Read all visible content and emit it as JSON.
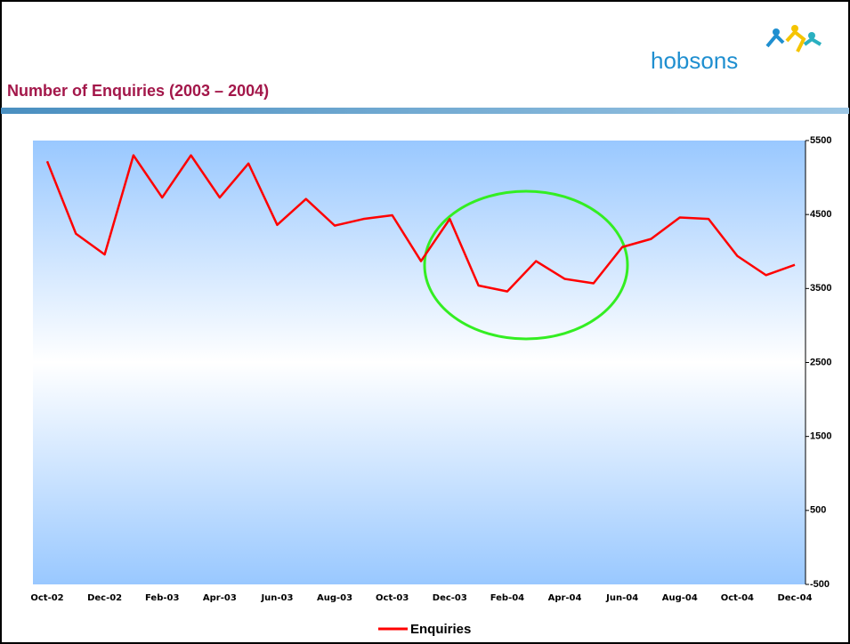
{
  "logo": "hobsons",
  "chart_data": {
    "type": "line",
    "title": "Number of Enquiries (2003 – 2004)",
    "categories": [
      "Oct-02",
      null,
      "Dec-02",
      null,
      "Feb-03",
      null,
      "Apr-03",
      null,
      "Jun-03",
      null,
      "Aug-03",
      null,
      "Oct-03",
      null,
      "Dec-03",
      null,
      "Feb-04",
      null,
      "Apr-04",
      null,
      "Jun-04",
      null,
      "Aug-04",
      null,
      "Oct-04",
      null,
      "Dec-04"
    ],
    "series": [
      {
        "name": "Enquiries",
        "color": "#ff0000",
        "values": [
          5220,
          4240,
          3960,
          5300,
          4730,
          5300,
          4730,
          5190,
          4360,
          4710,
          4350,
          4440,
          4490,
          3870,
          4440,
          3540,
          3460,
          3870,
          3630,
          3570,
          4060,
          4170,
          4460,
          4440,
          3940,
          3680,
          3820
        ]
      }
    ],
    "ylim": [
      -500,
      5500
    ],
    "yticks": [
      -500,
      500,
      1500,
      2500,
      3500,
      4500,
      5500
    ],
    "y_axis_side": "right",
    "legend": "bottom"
  }
}
